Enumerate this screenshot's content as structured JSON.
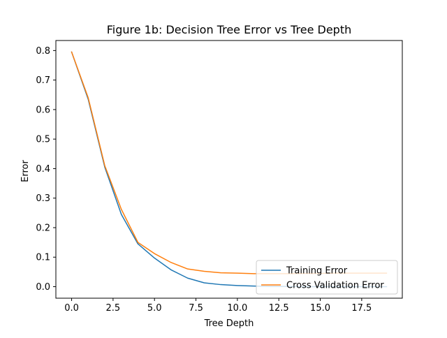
{
  "chart_data": {
    "type": "line",
    "title": "Figure 1b: Decision Tree Error vs Tree Depth",
    "xlabel": "Tree Depth",
    "ylabel": "Error",
    "xlim": [
      -0.95,
      19.95
    ],
    "ylim": [
      -0.039,
      0.834
    ],
    "xticks": [
      0.0,
      2.5,
      5.0,
      7.5,
      10.0,
      12.5,
      15.0,
      17.5
    ],
    "xtick_labels": [
      "0.0",
      "2.5",
      "5.0",
      "7.5",
      "10.0",
      "12.5",
      "15.0",
      "17.5"
    ],
    "yticks": [
      0.0,
      0.1,
      0.2,
      0.3,
      0.4,
      0.5,
      0.6,
      0.7,
      0.8
    ],
    "ytick_labels": [
      "0.0",
      "0.1",
      "0.2",
      "0.3",
      "0.4",
      "0.5",
      "0.6",
      "0.7",
      "0.8"
    ],
    "grid": false,
    "legend_position": "lower right",
    "x": [
      0,
      1,
      2,
      3,
      4,
      5,
      6,
      7,
      8,
      9,
      10,
      11,
      12,
      13,
      14,
      15,
      16,
      17,
      18,
      19
    ],
    "series": [
      {
        "name": "Training Error",
        "color": "#1f77b4",
        "values": [
          0.795,
          0.635,
          0.405,
          0.245,
          0.145,
          0.097,
          0.057,
          0.029,
          0.013,
          0.007,
          0.004,
          0.002,
          0.001,
          0.001,
          0.0,
          0.0,
          0.0,
          0.0,
          0.0,
          0.0
        ]
      },
      {
        "name": "Cross Validation Error",
        "color": "#ff7f0e",
        "values": [
          0.795,
          0.64,
          0.41,
          0.262,
          0.15,
          0.112,
          0.082,
          0.06,
          0.052,
          0.047,
          0.046,
          0.044,
          0.044,
          0.044,
          0.045,
          0.045,
          0.046,
          0.046,
          0.046,
          0.046
        ]
      }
    ]
  }
}
